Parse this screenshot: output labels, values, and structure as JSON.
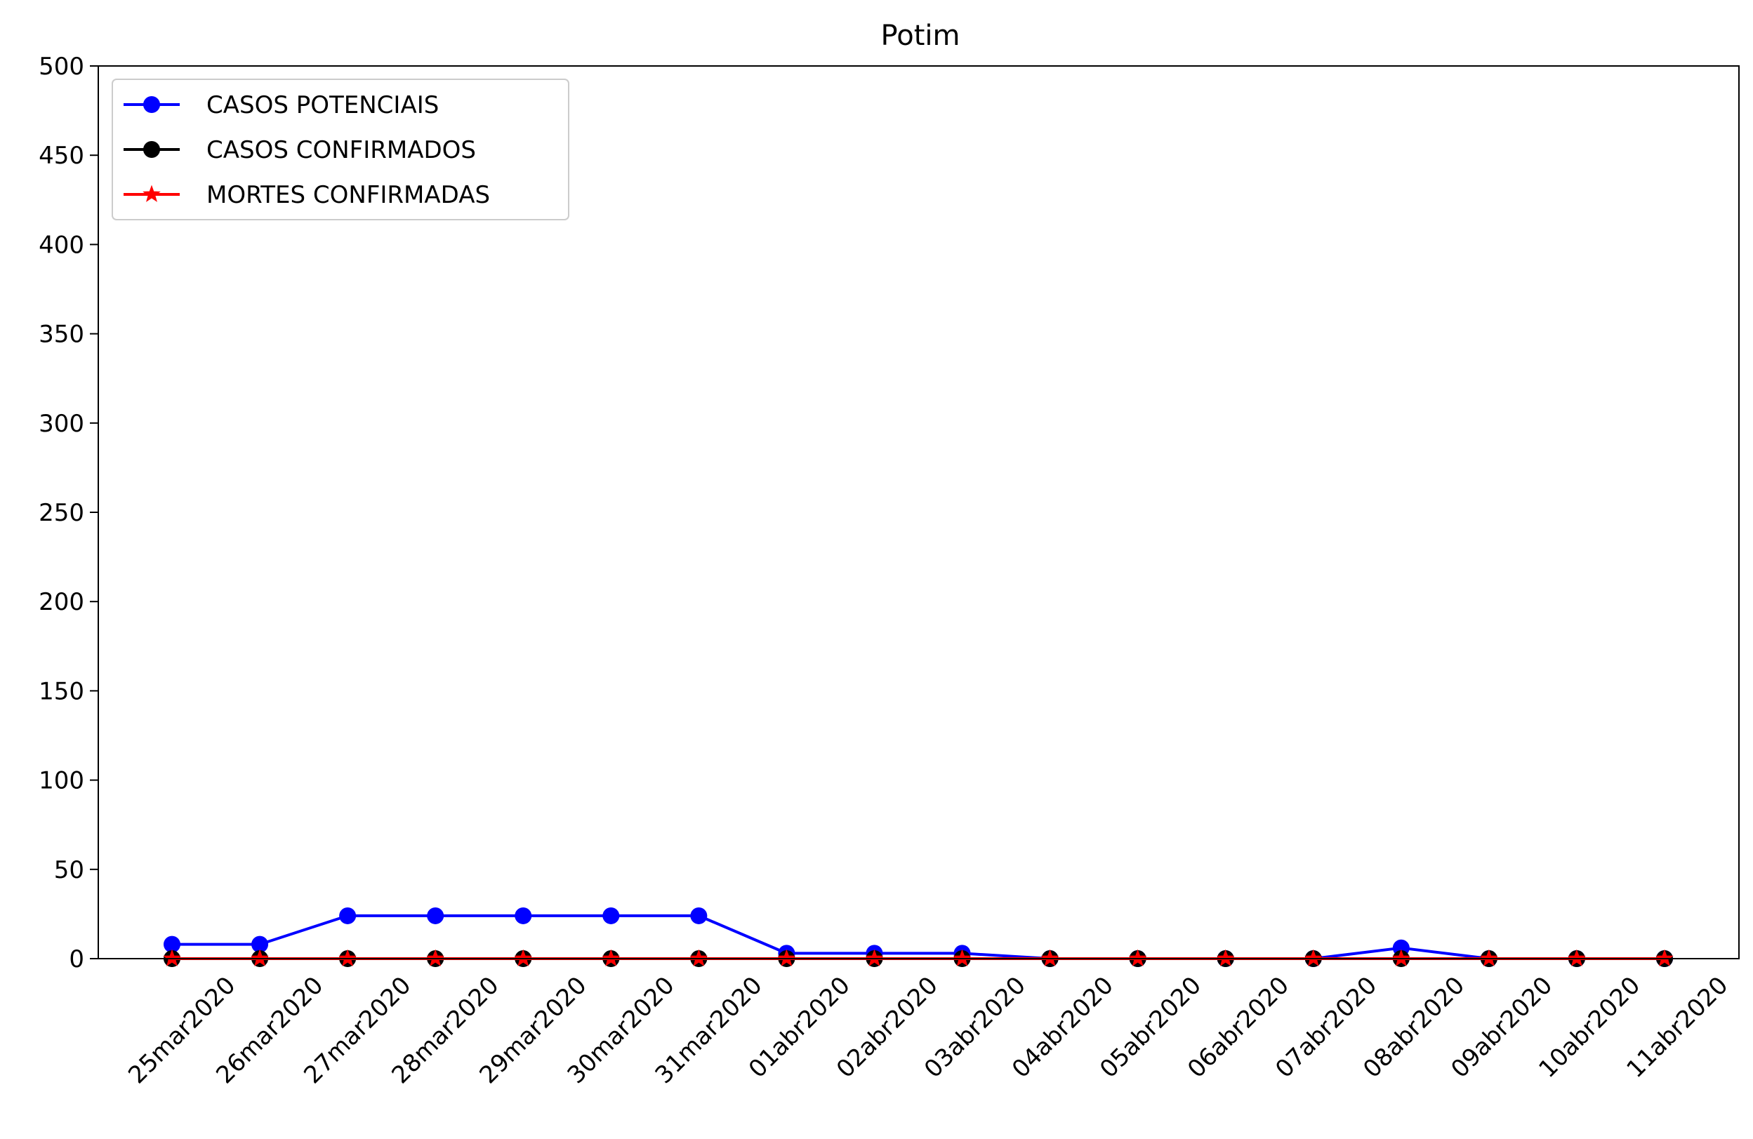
{
  "chart_data": {
    "type": "line",
    "title": "Potim",
    "xlabel": "",
    "ylabel": "",
    "ylim": [
      0,
      500
    ],
    "yticks": [
      0,
      50,
      100,
      150,
      200,
      250,
      300,
      350,
      400,
      450,
      500
    ],
    "grid": false,
    "legend_position": "top-left",
    "categories": [
      "25mar2020",
      "26mar2020",
      "27mar2020",
      "28mar2020",
      "29mar2020",
      "30mar2020",
      "31mar2020",
      "01abr2020",
      "02abr2020",
      "03abr2020",
      "04abr2020",
      "05abr2020",
      "06abr2020",
      "07abr2020",
      "08abr2020",
      "09abr2020",
      "10abr2020",
      "11abr2020"
    ],
    "series": [
      {
        "name": "CASOS POTENCIAIS",
        "color": "#0000ff",
        "marker": "circle",
        "values": [
          8,
          8,
          24,
          24,
          24,
          24,
          24,
          3,
          3,
          3,
          0,
          0,
          0,
          0,
          6,
          0,
          0,
          0
        ]
      },
      {
        "name": "CASOS CONFIRMADOS",
        "color": "#000000",
        "marker": "circle",
        "values": [
          0,
          0,
          0,
          0,
          0,
          0,
          0,
          0,
          0,
          0,
          0,
          0,
          0,
          0,
          0,
          0,
          0,
          0
        ]
      },
      {
        "name": "MORTES CONFIRMADAS",
        "color": "#ff0000",
        "marker": "star",
        "values": [
          0,
          0,
          0,
          0,
          0,
          0,
          0,
          0,
          0,
          0,
          0,
          0,
          0,
          0,
          0,
          0,
          0,
          0
        ]
      }
    ]
  }
}
